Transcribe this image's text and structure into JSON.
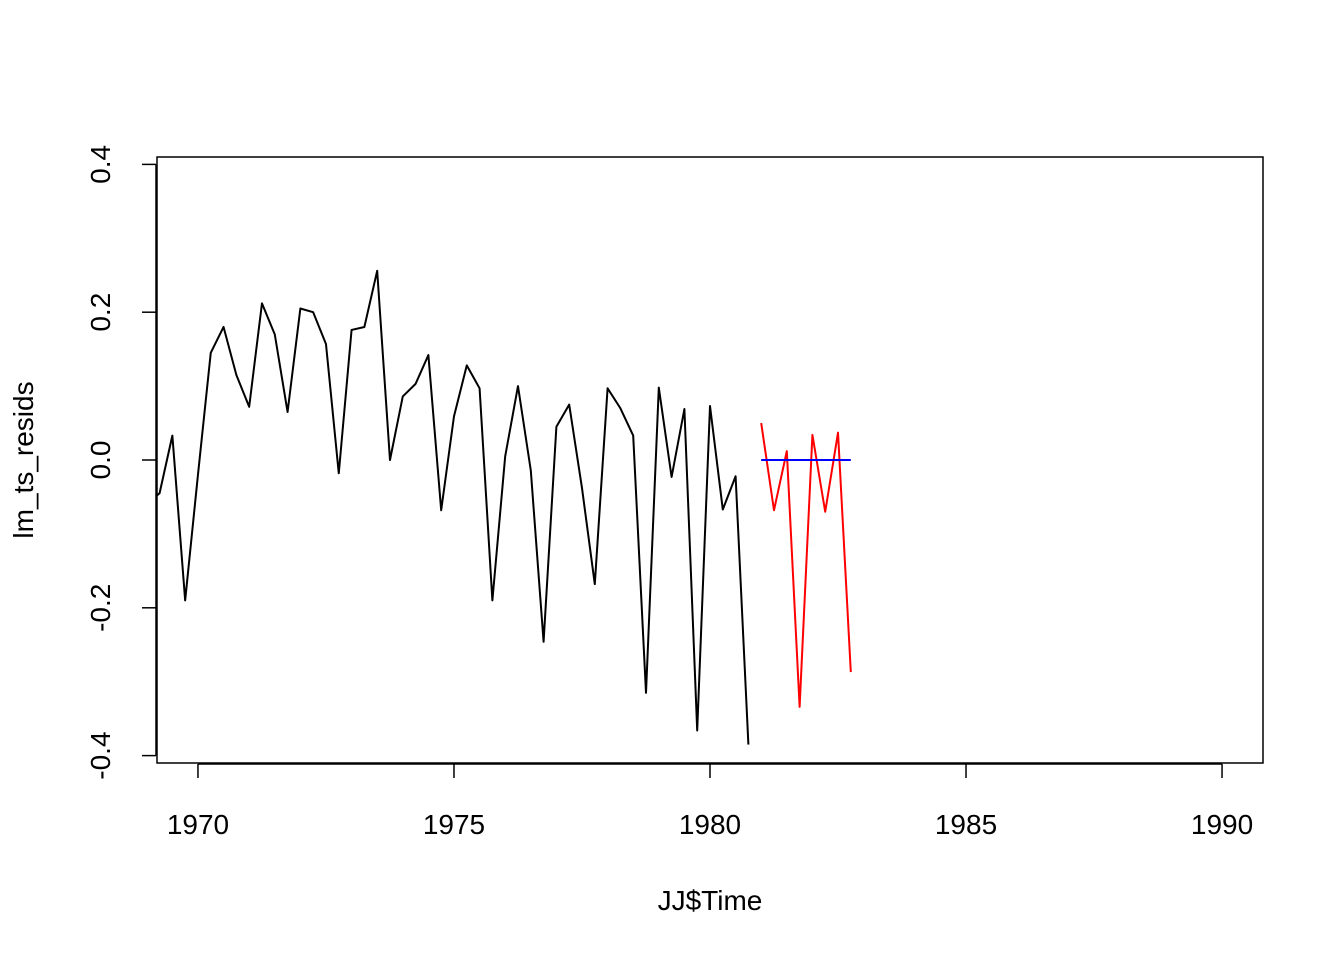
{
  "chart_data": {
    "type": "line",
    "title": "",
    "xlabel": "JJ$Time",
    "ylabel": "lm_ts_resids",
    "xlim": [
      1969.2,
      1990.8
    ],
    "ylim": [
      -0.41,
      0.41
    ],
    "x_ticks": [
      1970,
      1975,
      1980,
      1985,
      1990
    ],
    "y_ticks": [
      -0.4,
      -0.2,
      0.0,
      0.2,
      0.4
    ],
    "x_tick_labels": [
      "1970",
      "1975",
      "1980",
      "1985",
      "1990"
    ],
    "y_tick_labels": [
      "-0.4",
      "-0.2",
      "0.0",
      "0.2",
      "0.4"
    ],
    "grid": false,
    "legend": "none",
    "series": [
      {
        "color": "#000000",
        "x": [
          1969.0,
          1969.25,
          1969.5,
          1969.75,
          1970.0,
          1970.25,
          1970.5,
          1970.75,
          1971.0,
          1971.25,
          1971.5,
          1971.75,
          1972.0,
          1972.25,
          1972.5,
          1972.75,
          1973.0,
          1973.25,
          1973.5,
          1973.75,
          1974.0,
          1974.25,
          1974.5,
          1974.75,
          1975.0,
          1975.25,
          1975.5,
          1975.75,
          1976.0,
          1976.25,
          1976.5,
          1976.75,
          1977.0,
          1977.25,
          1977.5,
          1977.75,
          1978.0,
          1978.25,
          1978.5,
          1978.75,
          1979.0,
          1979.25,
          1979.5,
          1979.75,
          1980.0,
          1980.25,
          1980.5,
          1980.75
        ],
        "y": [
          -0.06,
          -0.045,
          0.033,
          -0.19,
          -0.02,
          0.145,
          0.18,
          0.115,
          0.072,
          0.212,
          0.17,
          0.065,
          0.205,
          0.2,
          0.157,
          -0.018,
          0.176,
          0.18,
          0.256,
          0.0,
          0.086,
          0.103,
          0.142,
          -0.068,
          0.059,
          0.128,
          0.097,
          -0.19,
          0.005,
          0.1,
          -0.014,
          -0.246,
          0.045,
          0.075,
          -0.038,
          -0.168,
          0.097,
          0.07,
          0.033,
          -0.315,
          0.098,
          -0.023,
          0.069,
          -0.366,
          0.073,
          -0.067,
          -0.022,
          -0.385
        ]
      },
      {
        "color": "#ff0000",
        "x": [
          1981.0,
          1981.25,
          1981.5,
          1981.75,
          1982.0,
          1982.25,
          1982.5,
          1982.75
        ],
        "y": [
          0.05,
          -0.068,
          0.012,
          -0.334,
          0.034,
          -0.07,
          0.037,
          -0.287
        ]
      },
      {
        "color": "#0000ff",
        "x": [
          1981.0,
          1981.25,
          1981.5,
          1981.75,
          1982.0,
          1982.25,
          1982.5,
          1982.75
        ],
        "y": [
          0.0,
          0.0,
          0.0,
          0.0,
          0.0,
          0.0,
          0.0,
          0.0
        ]
      }
    ]
  }
}
